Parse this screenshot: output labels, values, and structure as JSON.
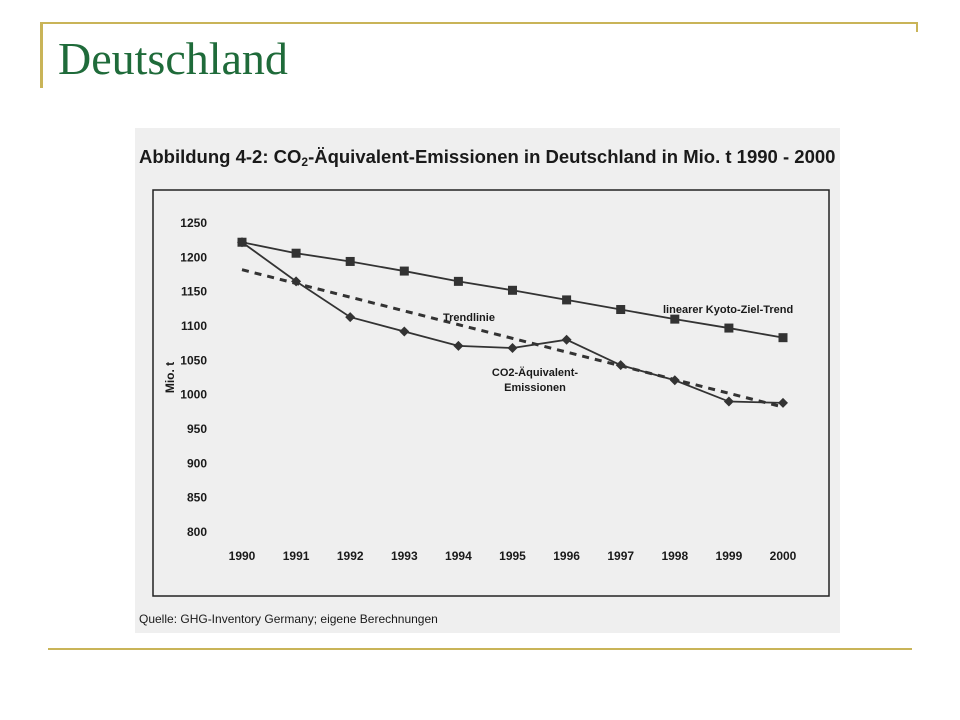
{
  "slide": {
    "title": "Deutschland"
  },
  "figure": {
    "title_prefix": "Abbildung 4-2: CO",
    "title_subscript": "2",
    "title_suffix": "-Äquivalent-Emissionen in Deutschland in Mio. t 1990 - 2000",
    "source": "Quelle: GHG-Inventory Germany; eigene Berechnungen"
  },
  "colors": {
    "accent_line": "#c9b458",
    "title": "#1f6b3a",
    "ink": "#1a1a1a"
  },
  "chart_data": {
    "type": "line",
    "categories": [
      "1990",
      "1991",
      "1992",
      "1993",
      "1994",
      "1995",
      "1996",
      "1997",
      "1998",
      "1999",
      "2000"
    ],
    "ylabel": "Mio. t",
    "ylim": [
      800,
      1250
    ],
    "yticks": [
      800,
      850,
      900,
      950,
      1000,
      1050,
      1100,
      1150,
      1200,
      1250
    ],
    "grid": false,
    "series": [
      {
        "name": "linearer Kyoto-Ziel-Trend",
        "style": "solid-square",
        "values": [
          1222,
          1206,
          1194,
          1180,
          1165,
          1152,
          1138,
          1124,
          1110,
          1097,
          1083
        ]
      },
      {
        "name": "CO2-Äquivalent-Emissionen",
        "style": "solid-diamond",
        "values": [
          1222,
          1165,
          1113,
          1092,
          1071,
          1068,
          1080,
          1043,
          1021,
          990,
          988
        ]
      },
      {
        "name": "Trendlinie",
        "style": "dashed",
        "values": [
          1182,
          1162,
          1142,
          1122,
          1102,
          1082,
          1062,
          1042,
          1022,
          1002,
          982
        ]
      }
    ],
    "annotations": [
      {
        "text": "Trendlinie"
      },
      {
        "text": "linearer Kyoto-Ziel-Trend"
      },
      {
        "text_line1": "CO2-Äquivalent-",
        "text_line2": "Emissionen"
      }
    ]
  }
}
